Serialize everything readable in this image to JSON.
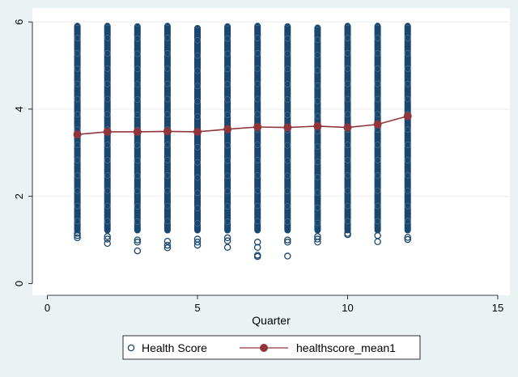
{
  "chart_data": {
    "type": "scatter",
    "title": "",
    "xlabel": "Quarter",
    "ylabel": "",
    "xlim": [
      0,
      15
    ],
    "ylim": [
      0,
      6
    ],
    "xticks": [
      "0",
      "5",
      "10",
      "15"
    ],
    "yticks": [
      "0",
      "2",
      "4",
      "6"
    ],
    "grid": true,
    "legend_position": "bottom",
    "series": [
      {
        "name": "Health Score",
        "kind": "scatter",
        "marker": "hollow-circle",
        "color": "#1a476f",
        "x": [
          1,
          2,
          3,
          4,
          5,
          6,
          7,
          8,
          9,
          10,
          11,
          12
        ],
        "ymin": [
          1.02,
          0.92,
          0.75,
          0.82,
          0.88,
          0.83,
          0.62,
          0.63,
          0.95,
          1.12,
          0.96,
          1.01
        ],
        "ymax": [
          5.98,
          5.98,
          5.97,
          5.98,
          5.93,
          5.97,
          5.98,
          5.97,
          5.94,
          5.98,
          5.98,
          5.98
        ],
        "sparse_points": [
          [
            1,
            1.05
          ],
          [
            1,
            1.1
          ],
          [
            1,
            1.15
          ],
          [
            2,
            0.92
          ],
          [
            2,
            1.02
          ],
          [
            2,
            1.08
          ],
          [
            3,
            0.75
          ],
          [
            3,
            0.95
          ],
          [
            3,
            1.0
          ],
          [
            4,
            0.82
          ],
          [
            4,
            0.88
          ],
          [
            4,
            0.97
          ],
          [
            5,
            0.88
          ],
          [
            5,
            0.95
          ],
          [
            5,
            1.02
          ],
          [
            6,
            0.83
          ],
          [
            6,
            0.98
          ],
          [
            6,
            1.05
          ],
          [
            7,
            0.62
          ],
          [
            7,
            0.65
          ],
          [
            7,
            0.83
          ],
          [
            7,
            0.95
          ],
          [
            8,
            0.63
          ],
          [
            8,
            0.95
          ],
          [
            8,
            1.0
          ],
          [
            9,
            0.95
          ],
          [
            9,
            1.02
          ],
          [
            9,
            1.08
          ],
          [
            10,
            1.12
          ],
          [
            10,
            1.15
          ],
          [
            11,
            0.96
          ],
          [
            11,
            1.1
          ],
          [
            12,
            1.01
          ],
          [
            12,
            1.06
          ]
        ]
      },
      {
        "name": "healthscore_mean1",
        "kind": "line",
        "marker": "filled-circle",
        "color": "#90353b",
        "x": [
          1,
          2,
          3,
          4,
          5,
          6,
          7,
          8,
          9,
          10,
          11,
          12
        ],
        "y": [
          3.42,
          3.48,
          3.48,
          3.49,
          3.48,
          3.54,
          3.59,
          3.58,
          3.61,
          3.58,
          3.65,
          3.84
        ]
      }
    ]
  }
}
